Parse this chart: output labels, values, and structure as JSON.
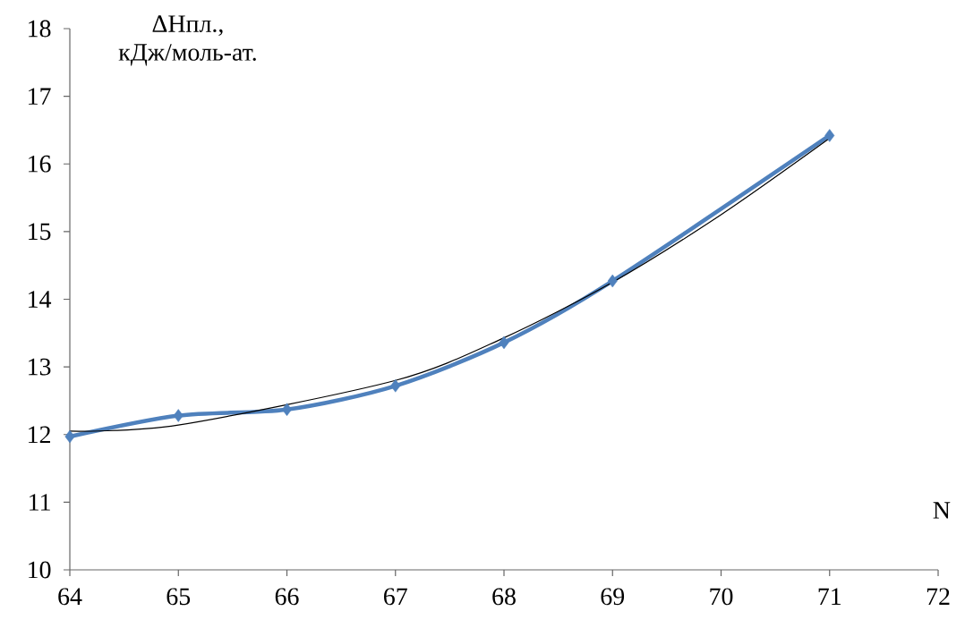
{
  "chart_data": {
    "type": "line",
    "xlabel": "N",
    "ylabel": "ΔHпл., кДж/моль-ат.",
    "xlim": [
      64,
      72
    ],
    "xticks": [
      64,
      65,
      66,
      67,
      68,
      69,
      70,
      71,
      72
    ],
    "ylim": [
      10,
      18
    ],
    "yticks": [
      10,
      11,
      12,
      13,
      14,
      15,
      16,
      17,
      18
    ],
    "series": [
      {
        "color": "#4f81bd",
        "marker": "diamond",
        "x": [
          64,
          65,
          66,
          67,
          68,
          69,
          71
        ],
        "values": [
          11.97,
          12.28,
          12.37,
          12.72,
          13.36,
          14.27,
          16.42
        ]
      },
      {
        "color": "#000000",
        "marker": "none",
        "x": [
          64,
          65,
          66,
          67,
          68,
          69,
          70,
          71
        ],
        "values": [
          12.05,
          12.14,
          null,
          12.8,
          13.43,
          14.25,
          15.25,
          16.38
        ]
      }
    ]
  }
}
